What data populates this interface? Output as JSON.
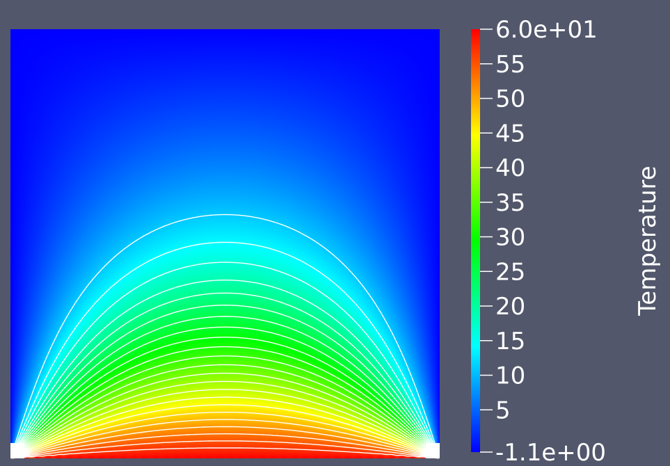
{
  "chart_data": {
    "type": "heatmap",
    "scalar_name": "Temperature",
    "range": [
      -1.1,
      60.0
    ],
    "colormap": "jet",
    "colormap_stops": [
      {
        "value": -1.1,
        "color": "#0000ff"
      },
      {
        "value": 14.2,
        "color": "#00ffff"
      },
      {
        "value": 29.4,
        "color": "#00ff00"
      },
      {
        "value": 44.7,
        "color": "#ffff00"
      },
      {
        "value": 60.0,
        "color": "#ff0000"
      }
    ],
    "colorbar_ticks": [
      {
        "value": 60.0,
        "label": "6.0e+01"
      },
      {
        "value": 55,
        "label": "55"
      },
      {
        "value": 50,
        "label": "50"
      },
      {
        "value": 45,
        "label": "45"
      },
      {
        "value": 40,
        "label": "40"
      },
      {
        "value": 35,
        "label": "35"
      },
      {
        "value": 30,
        "label": "30"
      },
      {
        "value": 25,
        "label": "25"
      },
      {
        "value": 20,
        "label": "20"
      },
      {
        "value": 15,
        "label": "15"
      },
      {
        "value": 10,
        "label": "10"
      },
      {
        "value": 5,
        "label": "5"
      },
      {
        "value": -1.1,
        "label": "-1.1e+00"
      }
    ],
    "contour_levels": [
      11,
      14,
      16.5,
      19,
      21,
      23,
      25,
      27,
      29,
      31,
      33,
      35,
      37,
      39,
      41,
      43,
      45,
      47,
      49,
      51,
      53,
      55,
      57
    ],
    "contour_color": "#ffffff",
    "boundary_conditions": "bottom edge held at 60, top and side edges held at -1.1",
    "background_color": "#52576b"
  }
}
